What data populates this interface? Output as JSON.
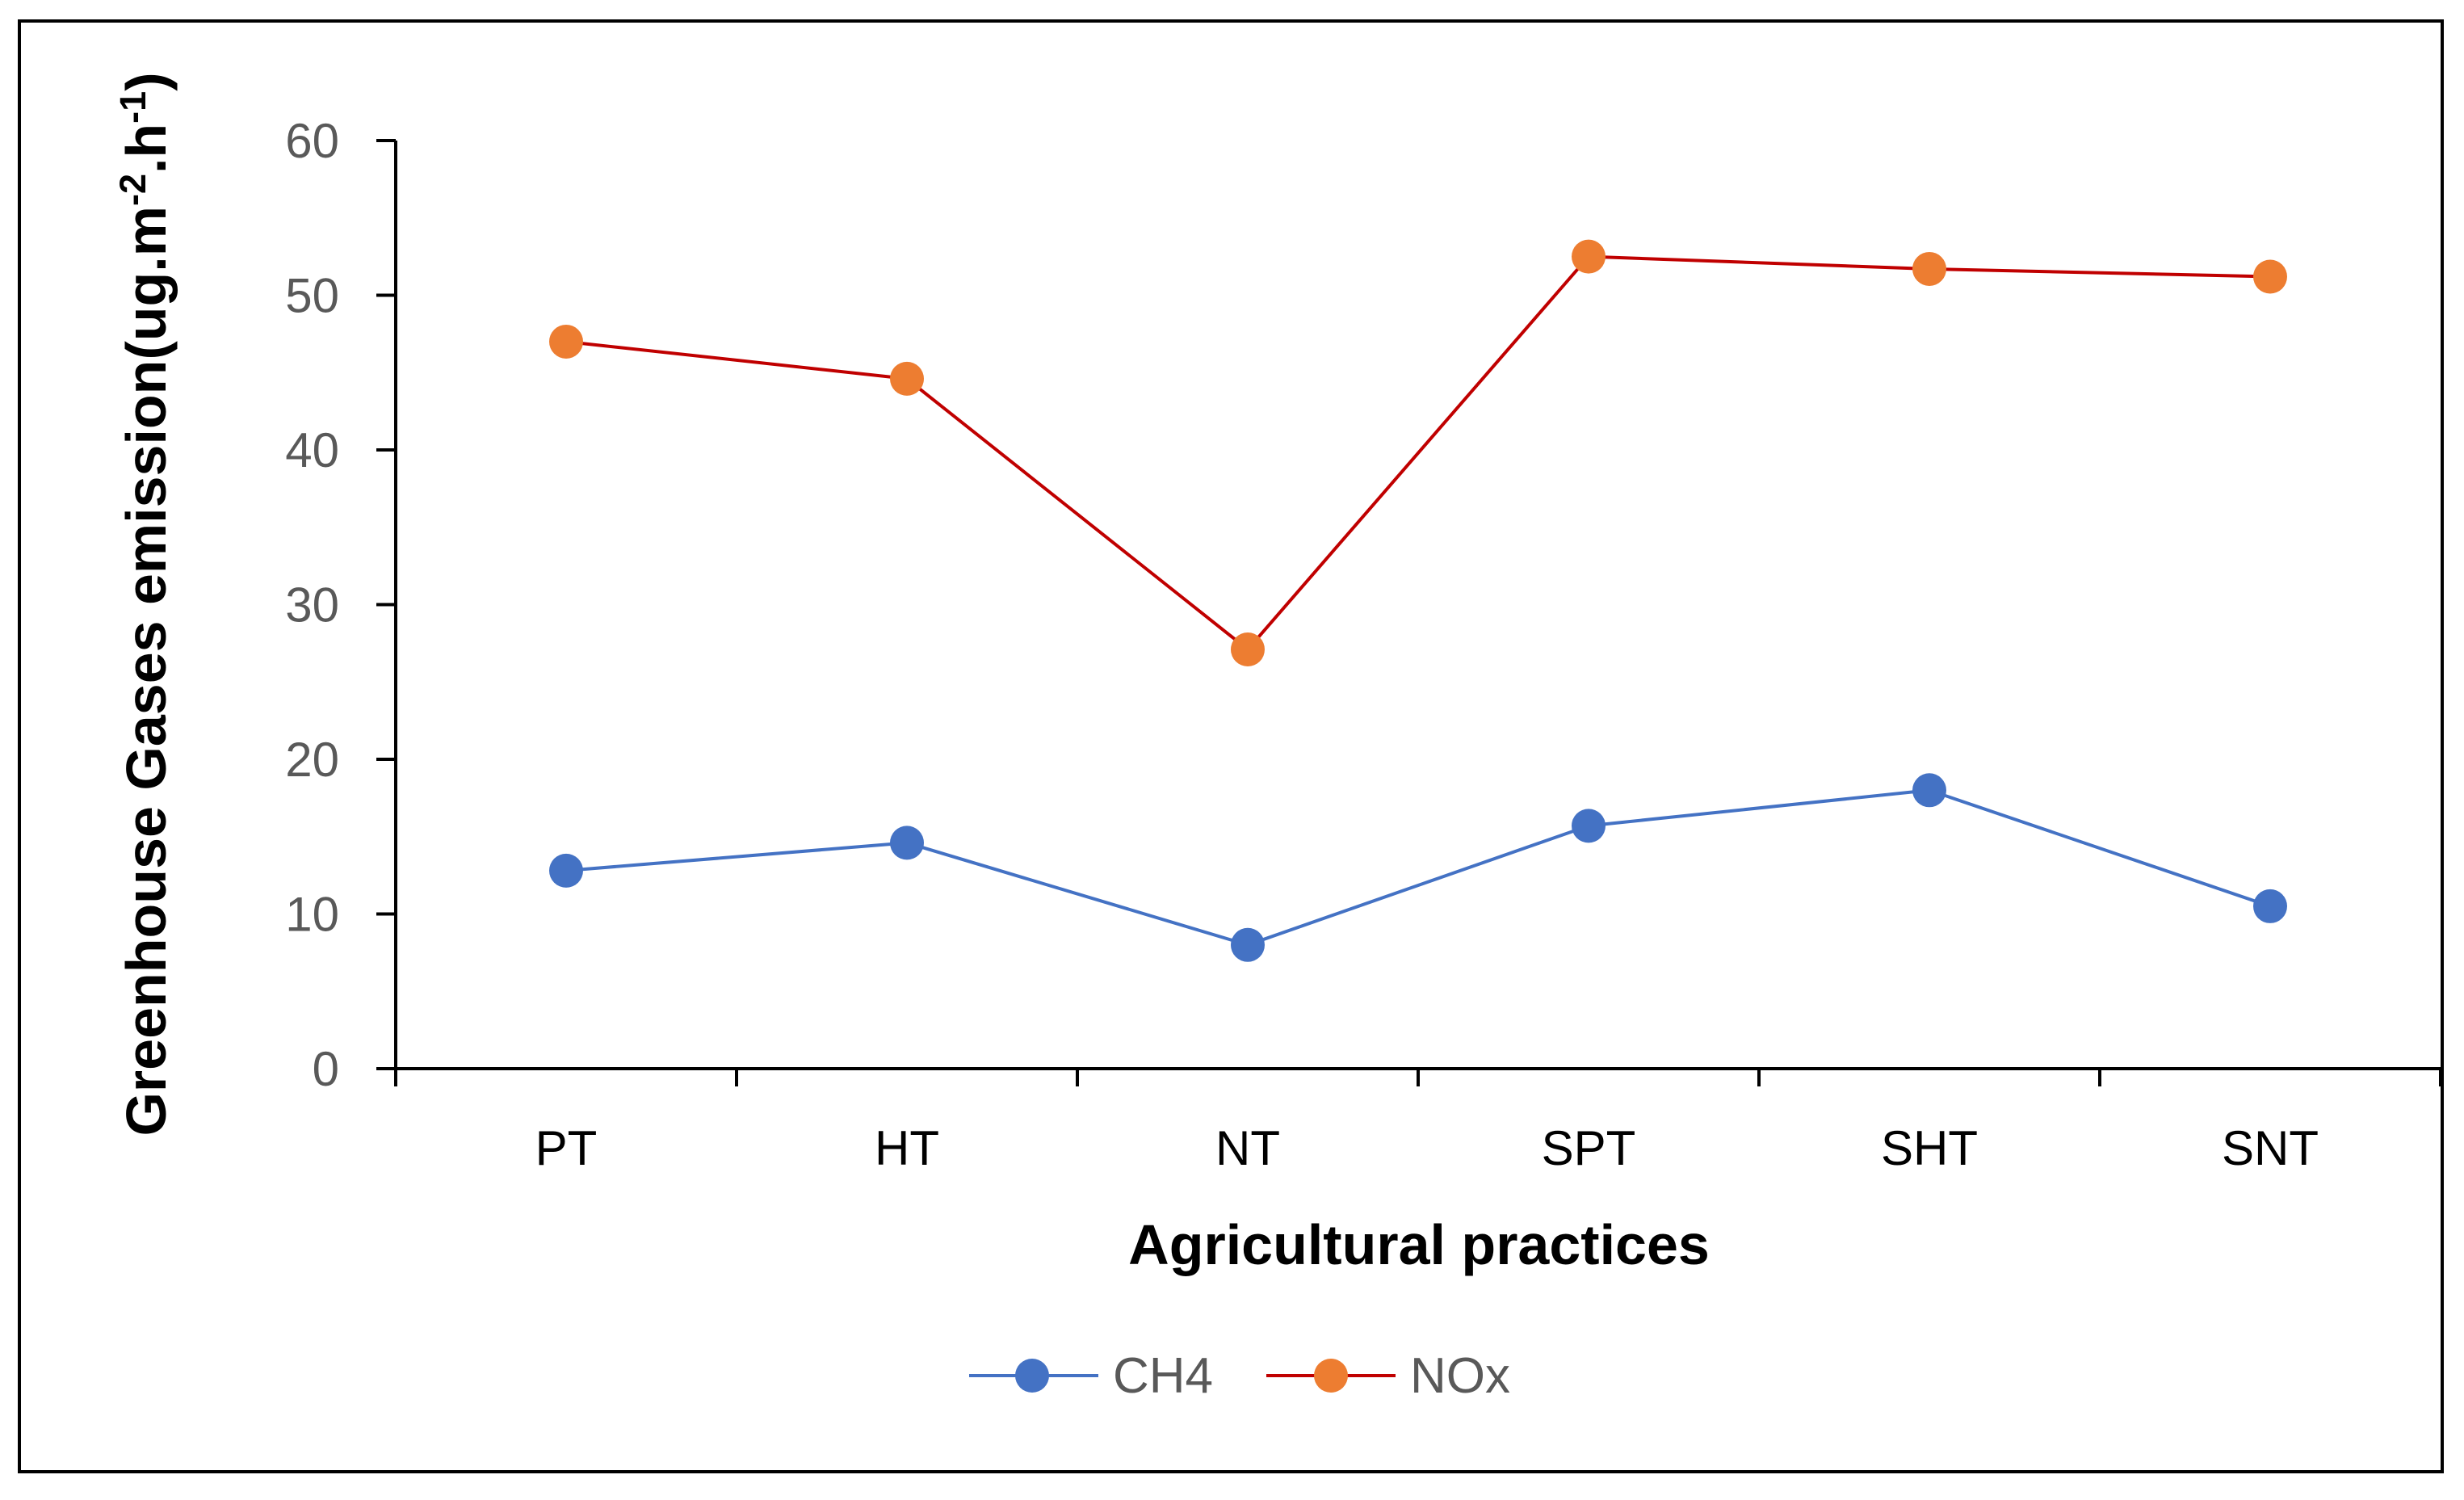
{
  "chart_data": {
    "type": "line",
    "title": "",
    "xlabel": "Agricultural practices",
    "ylabel": "Greenhouse Gases emission(ug.m-2.h-1)",
    "ylabel_parts": {
      "base": "Greenhouse Gases emission(ug.m",
      "sup1": "-2",
      "mid": ".h",
      "sup2": "-1",
      "end": ")"
    },
    "categories": [
      "PT",
      "HT",
      "NT",
      "SPT",
      "SHT",
      "SNT"
    ],
    "ylim": [
      0,
      60
    ],
    "yticks": [
      "0",
      "10",
      "20",
      "30",
      "40",
      "50",
      "60"
    ],
    "grid": false,
    "legend_position": "bottom",
    "series": [
      {
        "name": "CH4",
        "values": [
          12.8,
          14.6,
          8.0,
          15.7,
          18.0,
          10.5
        ],
        "line_color": "#4472C4",
        "marker_color": "#4472C4"
      },
      {
        "name": "NOx",
        "values": [
          47.0,
          44.6,
          27.1,
          52.5,
          51.7,
          51.2
        ],
        "line_color": "#C00000",
        "marker_color": "#ED7D31"
      }
    ]
  }
}
